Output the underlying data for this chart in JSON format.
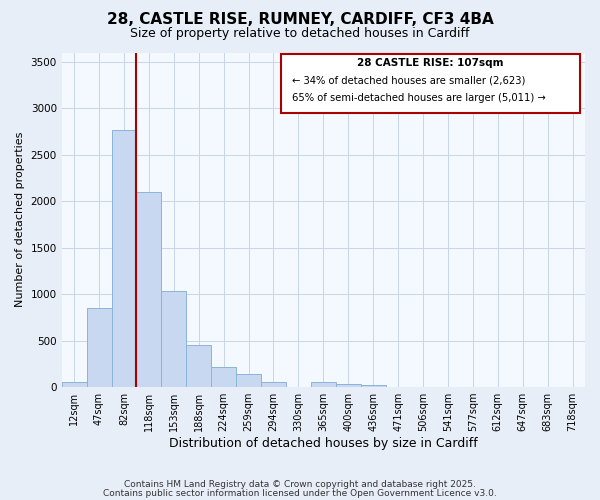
{
  "title": "28, CASTLE RISE, RUMNEY, CARDIFF, CF3 4BA",
  "subtitle": "Size of property relative to detached houses in Cardiff",
  "xlabel": "Distribution of detached houses by size in Cardiff",
  "ylabel": "Number of detached properties",
  "bar_labels": [
    "12sqm",
    "47sqm",
    "82sqm",
    "118sqm",
    "153sqm",
    "188sqm",
    "224sqm",
    "259sqm",
    "294sqm",
    "330sqm",
    "365sqm",
    "400sqm",
    "436sqm",
    "471sqm",
    "506sqm",
    "541sqm",
    "577sqm",
    "612sqm",
    "647sqm",
    "683sqm",
    "718sqm"
  ],
  "bar_values": [
    55,
    850,
    2770,
    2100,
    1030,
    450,
    215,
    145,
    60,
    0,
    50,
    30,
    20,
    0,
    0,
    0,
    0,
    0,
    0,
    0,
    0
  ],
  "bar_color": "#c8d8f0",
  "bar_edge_color": "#8ab4d8",
  "vline_x_index": 2,
  "vline_color": "#aa0000",
  "ylim": [
    0,
    3600
  ],
  "yticks": [
    0,
    500,
    1000,
    1500,
    2000,
    2500,
    3000,
    3500
  ],
  "annotation_title": "28 CASTLE RISE: 107sqm",
  "annotation_line1": "← 34% of detached houses are smaller (2,623)",
  "annotation_line2": "65% of semi-detached houses are larger (5,011) →",
  "annotation_box_color": "#ffffff",
  "annotation_box_edge": "#aa0000",
  "footnote1": "Contains HM Land Registry data © Crown copyright and database right 2025.",
  "footnote2": "Contains public sector information licensed under the Open Government Licence v3.0.",
  "bg_color": "#e8eef8",
  "plot_bg_color": "#f4f8ff",
  "grid_color": "#c8d4e8",
  "title_fontsize": 11,
  "subtitle_fontsize": 9,
  "xlabel_fontsize": 9,
  "ylabel_fontsize": 8,
  "tick_fontsize": 7,
  "footnote_fontsize": 6.5
}
